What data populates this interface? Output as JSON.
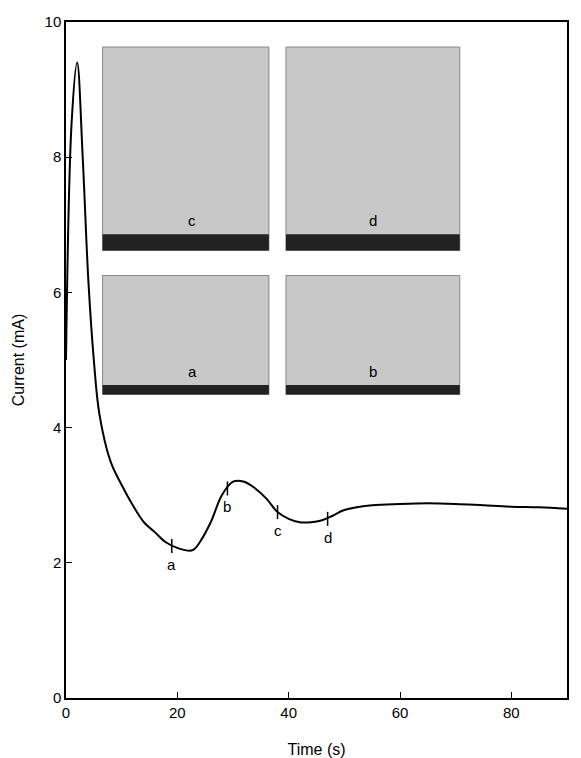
{
  "chart_data": {
    "type": "line",
    "x_label": "Time (s)",
    "y_label": "Current (mA)",
    "x": [
      0,
      1,
      2,
      3,
      4,
      5,
      6,
      8,
      10,
      12,
      14,
      16,
      18,
      20,
      22,
      23,
      24,
      26,
      28,
      30,
      32,
      34,
      36,
      38,
      40,
      42,
      44,
      46,
      48,
      50,
      55,
      60,
      65,
      70,
      75,
      80,
      85,
      90
    ],
    "values": [
      5.0,
      8.5,
      9.4,
      8.0,
      6.2,
      5.0,
      4.2,
      3.5,
      3.15,
      2.85,
      2.6,
      2.45,
      2.3,
      2.22,
      2.18,
      2.2,
      2.3,
      2.6,
      3.0,
      3.2,
      3.2,
      3.1,
      2.95,
      2.75,
      2.65,
      2.6,
      2.6,
      2.63,
      2.7,
      2.78,
      2.85,
      2.87,
      2.88,
      2.87,
      2.85,
      2.83,
      2.82,
      2.8
    ],
    "color": "#000000",
    "xlim": [
      0,
      90
    ],
    "xticks": [
      0,
      20,
      40,
      60,
      80
    ],
    "ylim": [
      0,
      10
    ],
    "yticks": [
      0,
      2,
      4,
      6,
      8,
      10
    ],
    "grid": false,
    "annotations": [
      {
        "text": "a",
        "x": 19,
        "y": 2.25
      },
      {
        "text": "b",
        "x": 29,
        "y": 3.1
      },
      {
        "text": "c",
        "x": 38,
        "y": 2.75
      },
      {
        "text": "d",
        "x": 47,
        "y": 2.65
      }
    ],
    "insets": [
      "c",
      "d",
      "a",
      "b"
    ]
  }
}
